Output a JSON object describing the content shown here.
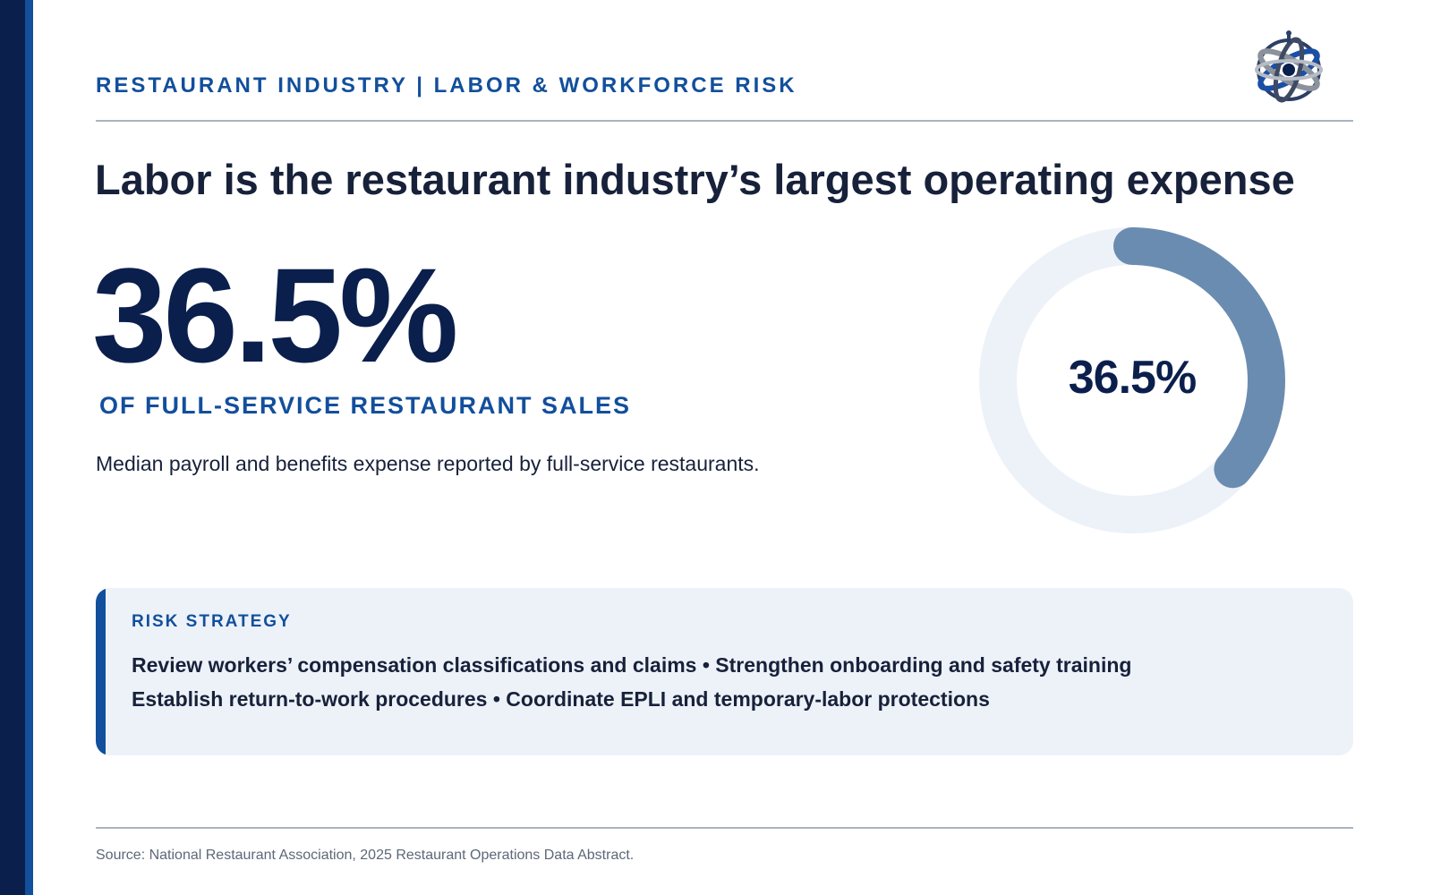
{
  "header": {
    "eyebrow": "RESTAURANT INDUSTRY | LABOR & WORKFORCE RISK"
  },
  "headline": "Labor is the restaurant industry’s largest operating expense",
  "stat": {
    "value": "36.5%",
    "label": "OF FULL-SERVICE RESTAURANT SALES",
    "description": "Median payroll and benefits expense reported by full-service restaurants."
  },
  "donut": {
    "label": "36.5%",
    "fraction": 0.365,
    "colors": {
      "track": "#edf2f9",
      "fill": "#6a8cb0"
    }
  },
  "callout": {
    "title": "RISK STRATEGY",
    "lines": [
      "Review workers’ compensation classifications and claims • Strengthen onboarding and safety training",
      "Establish return-to-work procedures • Coordinate EPLI and temporary-labor protections"
    ]
  },
  "footer": {
    "source": "Source: National Restaurant Association, 2025 Restaurant Operations Data Abstract."
  },
  "icons": {
    "logo": "globe-orbit-logo-icon"
  },
  "colors": {
    "navy": "#0b1f4d",
    "brand_blue": "#124f9c",
    "text": "#17213a",
    "muted": "#5d6878"
  }
}
